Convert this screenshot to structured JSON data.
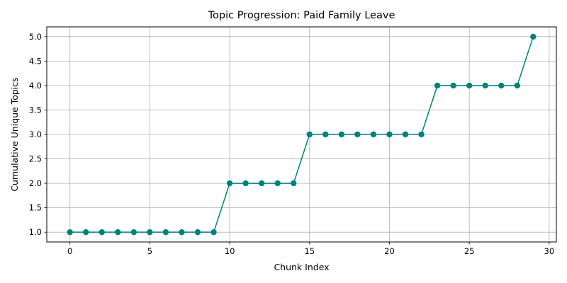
{
  "chart_data": {
    "type": "line",
    "title": "Topic Progression: Paid Family Leave",
    "xlabel": "Chunk Index",
    "ylabel": "Cumulative Unique Topics",
    "xlim": [
      -1.45,
      30.45
    ],
    "ylim": [
      0.8,
      5.2
    ],
    "grid": true,
    "x_ticks": [
      0,
      5,
      10,
      15,
      20,
      25,
      30
    ],
    "y_ticks": [
      1.0,
      1.5,
      2.0,
      2.5,
      3.0,
      3.5,
      4.0,
      4.5,
      5.0
    ],
    "x_tick_labels": [
      "0",
      "5",
      "10",
      "15",
      "20",
      "25",
      "30"
    ],
    "y_tick_labels": [
      "1.0",
      "1.5",
      "2.0",
      "2.5",
      "3.0",
      "3.5",
      "4.0",
      "4.5",
      "5.0"
    ],
    "color": "#008080",
    "marker": "circle",
    "x": [
      0,
      1,
      2,
      3,
      4,
      5,
      6,
      7,
      8,
      9,
      10,
      11,
      12,
      13,
      14,
      15,
      16,
      17,
      18,
      19,
      20,
      21,
      22,
      23,
      24,
      25,
      26,
      27,
      28,
      29
    ],
    "y": [
      1,
      1,
      1,
      1,
      1,
      1,
      1,
      1,
      1,
      1,
      2,
      2,
      2,
      2,
      2,
      3,
      3,
      3,
      3,
      3,
      3,
      3,
      3,
      4,
      4,
      4,
      4,
      4,
      4,
      5
    ]
  }
}
